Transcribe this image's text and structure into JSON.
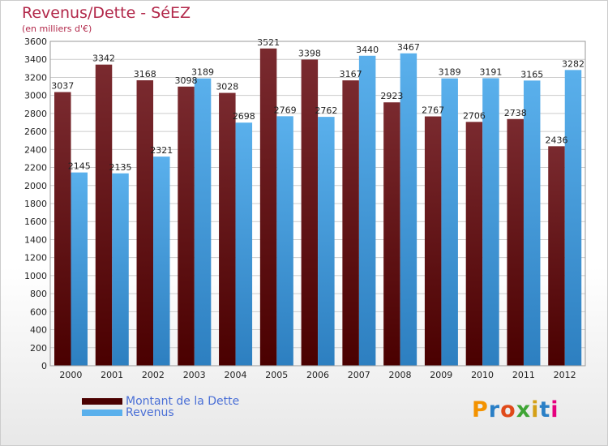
{
  "colors": {
    "title": "#b2284a",
    "debt_top": "#7a2a2f",
    "debt_bottom": "#4a0000",
    "revenue_top": "#5ab0ec",
    "revenue_bottom": "#2d7fc0",
    "grid": "#cccccc",
    "legend_text": "#4a6fd6"
  },
  "brand": {
    "text": "Proxiti",
    "letter_colors": [
      "#f39200",
      "#2a7fc6",
      "#e04a1a",
      "#3fa535",
      "#d4a017",
      "#2a7fc6",
      "#e6007e"
    ]
  },
  "chart_data": {
    "type": "bar",
    "title": "Revenus/Dette - SéEZ",
    "subtitle": "(en milliers d'€)",
    "categories": [
      "2000",
      "2001",
      "2002",
      "2003",
      "2004",
      "2005",
      "2006",
      "2007",
      "2008",
      "2009",
      "2010",
      "2011",
      "2012"
    ],
    "series": [
      {
        "name": "Montant de la Dette",
        "values": [
          3037,
          3342,
          3168,
          3098,
          3028,
          3521,
          3398,
          3167,
          2923,
          2767,
          2706,
          2738,
          2436
        ]
      },
      {
        "name": "Revenus",
        "values": [
          2145,
          2135,
          2321,
          3189,
          2698,
          2769,
          2762,
          3440,
          3467,
          3189,
          3191,
          3165,
          3282
        ]
      }
    ],
    "ylim": [
      0,
      3600
    ],
    "ytick_step": 200,
    "grid": true,
    "legend": "bottom-left"
  }
}
